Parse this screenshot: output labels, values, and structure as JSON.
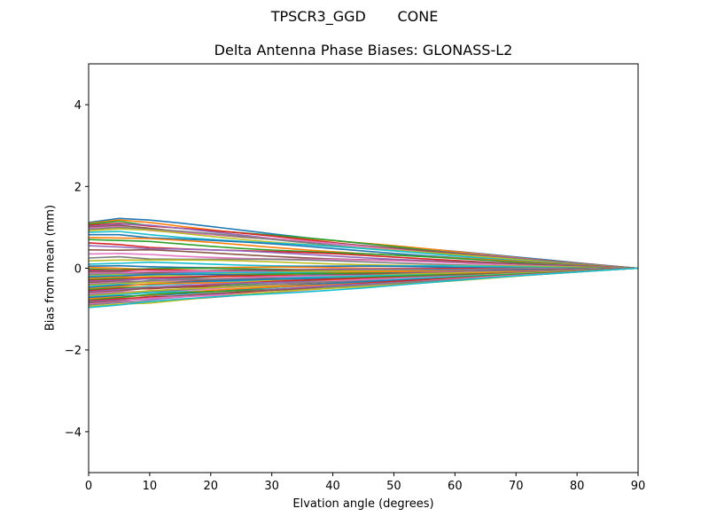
{
  "figure": {
    "suptitle": "TPSCR3_GGD       CONE",
    "title": "Delta Antenna Phase Biases: GLONASS-L2",
    "xlabel": "Elvation angle (degrees)",
    "ylabel": "Bias from mean (mm)"
  },
  "chart_data": {
    "type": "line",
    "title": "Delta Antenna Phase Biases: GLONASS-L2",
    "suptitle": "TPSCR3_GGD       CONE",
    "xlabel": "Elvation angle (degrees)",
    "ylabel": "Bias from mean (mm)",
    "xlim": [
      0,
      90
    ],
    "ylim": [
      -5,
      5
    ],
    "xticks": [
      0,
      10,
      20,
      30,
      40,
      50,
      60,
      70,
      80,
      90
    ],
    "yticks": [
      -4,
      -2,
      0,
      2,
      4
    ],
    "grid": false,
    "legend": "none",
    "x": [
      0,
      5,
      10,
      15,
      20,
      25,
      30,
      35,
      40,
      45,
      50,
      55,
      60,
      65,
      70,
      75,
      80,
      85,
      90
    ],
    "colors": [
      "#1f77b4",
      "#ff7f0e",
      "#2ca02c",
      "#d62728",
      "#9467bd",
      "#8c564b",
      "#e377c2",
      "#7f7f7f",
      "#bcbd22",
      "#17becf"
    ],
    "series_note": "Many series (approx. 60), each defined by value at 0 deg, 5 deg peak offset; all converge to 0 at 90 deg",
    "series_start_values": [
      1.12,
      1.1,
      1.08,
      1.05,
      1.02,
      1.0,
      0.98,
      0.95,
      0.92,
      0.88,
      0.82,
      0.75,
      0.7,
      0.62,
      0.55,
      0.45,
      0.35,
      0.25,
      0.18,
      0.1,
      0.05,
      0.02,
      -0.02,
      -0.05,
      -0.08,
      -0.1,
      -0.12,
      -0.15,
      -0.18,
      -0.2,
      -0.22,
      -0.25,
      -0.28,
      -0.3,
      -0.32,
      -0.35,
      -0.38,
      -0.4,
      -0.42,
      -0.45,
      -0.48,
      -0.5,
      -0.52,
      -0.55,
      -0.58,
      -0.6,
      -0.62,
      -0.65,
      -0.68,
      -0.7,
      -0.72,
      -0.75,
      -0.78,
      -0.8,
      -0.82,
      -0.85,
      -0.88,
      -0.9,
      -0.93,
      -0.96
    ],
    "series_peak_5deg": [
      1.22,
      1.18,
      1.15,
      1.1,
      1.08,
      1.05,
      1.02,
      1.0,
      0.96,
      0.9,
      0.82,
      0.74,
      0.68,
      0.58,
      0.52,
      0.44,
      0.36,
      0.28,
      0.2,
      0.12,
      0.06,
      0.0,
      -0.04,
      -0.06,
      -0.08,
      -0.1,
      -0.12,
      -0.14,
      -0.16,
      -0.18,
      -0.2,
      -0.22,
      -0.25,
      -0.28,
      -0.3,
      -0.32,
      -0.34,
      -0.36,
      -0.38,
      -0.4,
      -0.42,
      -0.45,
      -0.48,
      -0.5,
      -0.52,
      -0.55,
      -0.58,
      -0.6,
      -0.62,
      -0.65,
      -0.68,
      -0.7,
      -0.72,
      -0.75,
      -0.78,
      -0.8,
      -0.82,
      -0.84,
      -0.88,
      -0.9
    ]
  }
}
